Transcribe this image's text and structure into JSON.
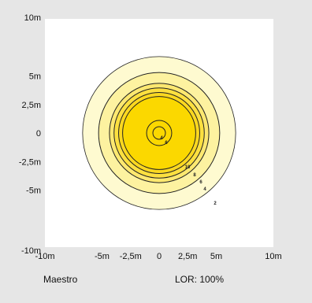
{
  "footer": {
    "left": "Maestro",
    "right": "LOR: 100%"
  },
  "chart_data": {
    "type": "polar-isolux",
    "x_ticks": [
      {
        "value": -10,
        "label": "-10m"
      },
      {
        "value": -5,
        "label": "-5m"
      },
      {
        "value": -2.5,
        "label": "-2,5m"
      },
      {
        "value": 0,
        "label": "0"
      },
      {
        "value": 2.5,
        "label": "2,5m"
      },
      {
        "value": 5,
        "label": "5m"
      },
      {
        "value": 10,
        "label": "10m"
      }
    ],
    "y_ticks": [
      {
        "value": 10,
        "label": "10m"
      },
      {
        "value": 5,
        "label": "5m"
      },
      {
        "value": 2.5,
        "label": "2,5m"
      },
      {
        "value": 0,
        "label": "0"
      },
      {
        "value": -2.5,
        "label": "-2,5m"
      },
      {
        "value": -5,
        "label": "-5m"
      },
      {
        "value": -10,
        "label": "-10m"
      }
    ],
    "contours": [
      {
        "radius": 6.7,
        "label": "",
        "fill": "#fefad0"
      },
      {
        "radius": 5.3,
        "label": "2",
        "fill": "#fdf2a0"
      },
      {
        "radius": 4.35,
        "label": "4",
        "fill": "#fde870"
      },
      {
        "radius": 3.95,
        "label": "6",
        "fill": "#fde040"
      },
      {
        "radius": 3.55,
        "label": "8",
        "fill": "#fbd820"
      },
      {
        "radius": 3.2,
        "label": "10",
        "fill": "#fbd800"
      },
      {
        "radius": 1.1,
        "label": "6",
        "fill": "#fbd800"
      },
      {
        "radius": 0.55,
        "label": "4",
        "fill": "#fbd800"
      }
    ],
    "colors": {
      "background": "#e6e6e6",
      "plot_bg": "#ffffff",
      "contour_line": "#222222"
    }
  }
}
